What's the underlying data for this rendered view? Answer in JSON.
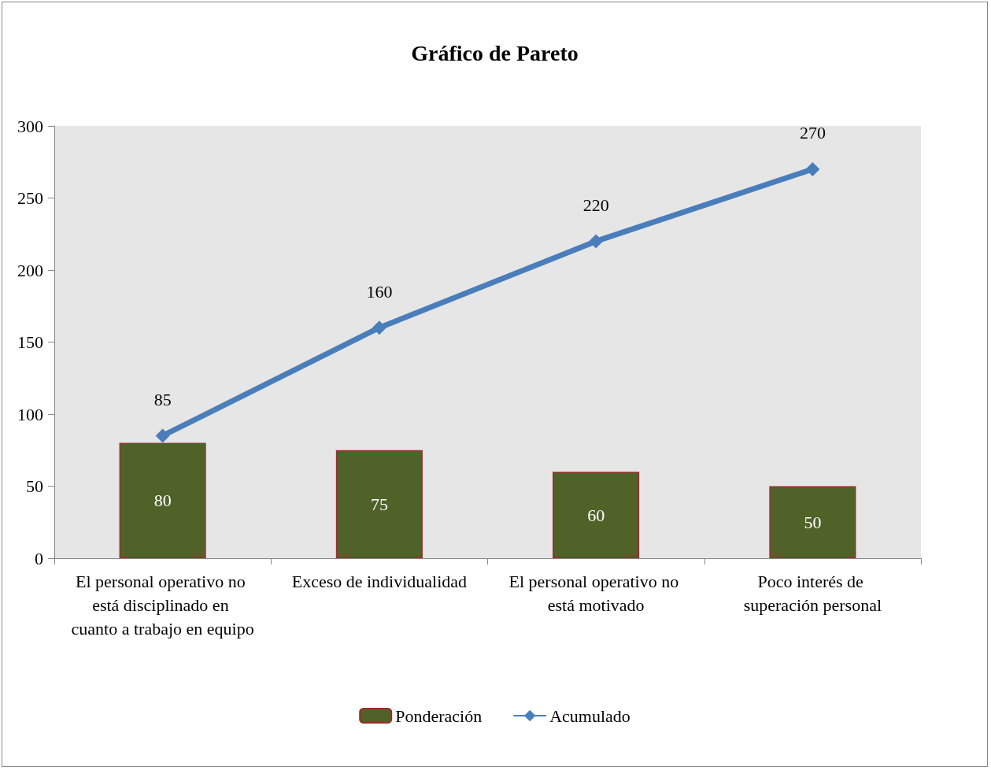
{
  "chart_data": {
    "type": "bar",
    "title": "Gráfico de Pareto",
    "categories": [
      "El personal operativo no está disciplinado en cuanto a trabajo en equipo",
      "Exceso de individualidad",
      "El personal operativo no está motivado",
      "Poco interés de superación personal"
    ],
    "series": [
      {
        "name": "Ponderación",
        "color": "#4f6228",
        "values": [
          80,
          75,
          60,
          50
        ]
      },
      {
        "name": "Acumulado",
        "type": "line",
        "color": "#4a7ebb",
        "values": [
          85,
          160,
          220,
          270
        ]
      }
    ],
    "ylim": [
      0,
      300
    ],
    "yticks": [
      0,
      50,
      100,
      150,
      200,
      250,
      300
    ],
    "grid": false,
    "legend": "bottom",
    "marker": "diamond",
    "line_style": "solid",
    "data_labels": true
  }
}
